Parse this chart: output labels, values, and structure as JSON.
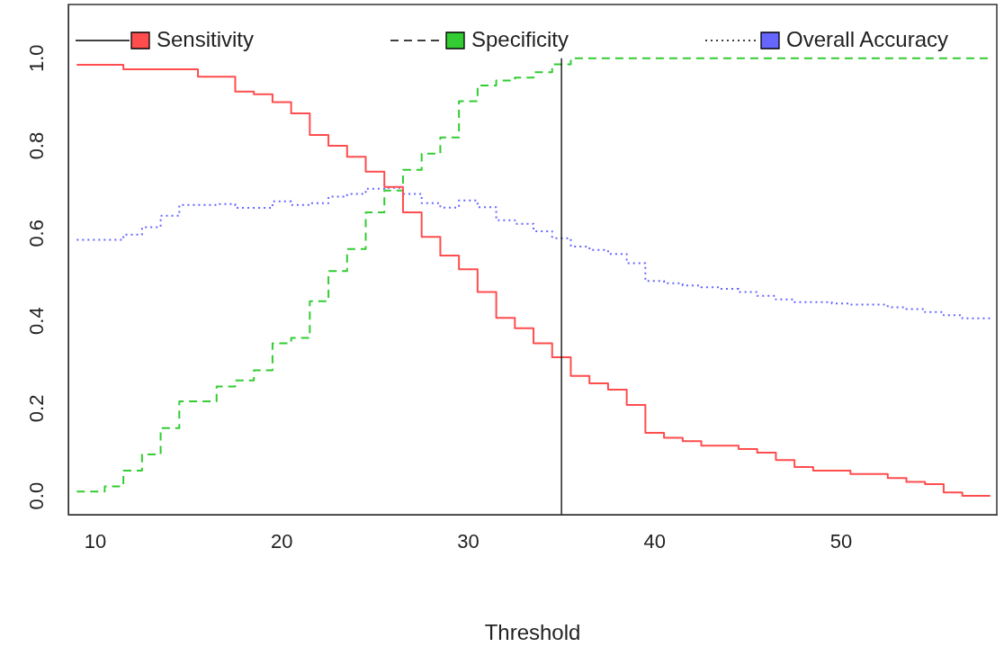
{
  "chart_data": {
    "type": "step",
    "xlabel": "Threshold",
    "x": [
      9,
      10,
      11,
      12,
      13,
      14,
      15,
      16,
      17,
      18,
      19,
      20,
      21,
      22,
      23,
      24,
      25,
      26,
      27,
      28,
      29,
      30,
      31,
      32,
      33,
      34,
      35,
      36,
      37,
      38,
      39,
      40,
      41,
      42,
      43,
      44,
      45,
      46,
      47,
      48,
      49,
      50,
      51,
      52,
      53,
      54,
      55,
      56,
      57,
      58
    ],
    "series": [
      {
        "name": "Sensitivity",
        "color": "#ff4d4d",
        "line_style": "solid",
        "values": [
          0.985,
          0.985,
          0.985,
          0.975,
          0.975,
          0.975,
          0.975,
          0.958,
          0.958,
          0.924,
          0.918,
          0.9,
          0.874,
          0.825,
          0.8,
          0.775,
          0.741,
          0.706,
          0.648,
          0.592,
          0.549,
          0.518,
          0.466,
          0.407,
          0.383,
          0.349,
          0.317,
          0.274,
          0.257,
          0.243,
          0.208,
          0.144,
          0.133,
          0.125,
          0.115,
          0.115,
          0.107,
          0.099,
          0.082,
          0.066,
          0.058,
          0.058,
          0.05,
          0.05,
          0.041,
          0.032,
          0.027,
          0.008,
          0,
          0
        ]
      },
      {
        "name": "Specificity",
        "color": "#33cc33",
        "line_style": "dashed",
        "values": [
          0.01,
          0.01,
          0.022,
          0.058,
          0.095,
          0.155,
          0.216,
          0.216,
          0.25,
          0.264,
          0.287,
          0.349,
          0.361,
          0.445,
          0.514,
          0.564,
          0.648,
          0.698,
          0.745,
          0.782,
          0.819,
          0.902,
          0.938,
          0.949,
          0.956,
          0.968,
          0.986,
          1,
          1,
          1,
          1,
          1,
          1,
          1,
          1,
          1,
          1,
          1,
          1,
          1,
          1,
          1,
          1,
          1,
          1,
          1,
          1,
          1,
          1,
          1
        ]
      },
      {
        "name": "Overall Accuracy",
        "color": "#6666ff",
        "line_style": "dotted",
        "values": [
          0.585,
          0.585,
          0.585,
          0.597,
          0.614,
          0.64,
          0.665,
          0.665,
          0.667,
          0.658,
          0.658,
          0.673,
          0.665,
          0.669,
          0.684,
          0.69,
          0.702,
          0.704,
          0.69,
          0.669,
          0.659,
          0.675,
          0.66,
          0.63,
          0.622,
          0.605,
          0.589,
          0.57,
          0.562,
          0.553,
          0.532,
          0.491,
          0.486,
          0.481,
          0.477,
          0.473,
          0.466,
          0.457,
          0.449,
          0.443,
          0.443,
          0.44,
          0.437,
          0.437,
          0.431,
          0.427,
          0.42,
          0.413,
          0.406,
          0.406
        ]
      }
    ],
    "xlim": [
      8.55,
      58.35
    ],
    "xticks": [
      10,
      20,
      30,
      40,
      50
    ],
    "ylim": [
      -0.043,
      1.123
    ],
    "yticks": [
      {
        "value": 0,
        "label": "0.0"
      },
      {
        "value": 0.2,
        "label": "0.2"
      },
      {
        "value": 0.4,
        "label": "0.4"
      },
      {
        "value": 0.6,
        "label": "0.6"
      },
      {
        "value": 0.8,
        "label": "0.8"
      },
      {
        "value": 1,
        "label": "1.0"
      }
    ],
    "ref_lines": [
      {
        "axis": "x",
        "value": 35,
        "color": "#000000"
      }
    ],
    "grid": false,
    "legend": "top",
    "marker": "none"
  }
}
